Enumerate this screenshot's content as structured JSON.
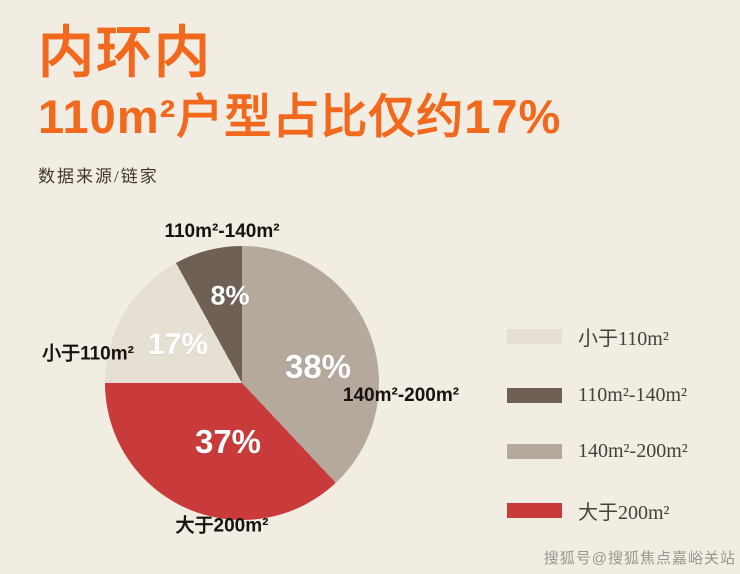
{
  "header": {
    "title_line1": "内环内",
    "title_line2": "110m²户型占比仅约17%",
    "source": "数据来源/链家"
  },
  "chart_data": {
    "type": "pie",
    "title": "内环内 110m²户型占比仅约17%",
    "start_angle_deg": 0,
    "direction": "clockwise",
    "slices": [
      {
        "label": "140m²-200m²",
        "value": 38,
        "pct_label": "38%",
        "color": "#b5a99e"
      },
      {
        "label": "大于200m²",
        "value": 37,
        "pct_label": "37%",
        "color": "#c93a3a"
      },
      {
        "label": "小于110m²",
        "value": 17,
        "pct_label": "17%",
        "color": "#e6e0d4"
      },
      {
        "label": "110m²-140m²",
        "value": 8,
        "pct_label": "8%",
        "color": "#6e6055"
      }
    ]
  },
  "legend": {
    "items": [
      {
        "label": "小于110m²",
        "color": "#e6e0d4"
      },
      {
        "label": "110m²-140m²",
        "color": "#6e6055"
      },
      {
        "label": "140m²-200m²",
        "color": "#b5a99e"
      },
      {
        "label": "大于200m²",
        "color": "#c93a3a"
      }
    ]
  },
  "watermark": "搜狐号@搜狐焦点嘉峪关站",
  "colors": {
    "accent_orange": "#f2681c",
    "background": "#f2ede2",
    "text_dark": "#17120d"
  }
}
